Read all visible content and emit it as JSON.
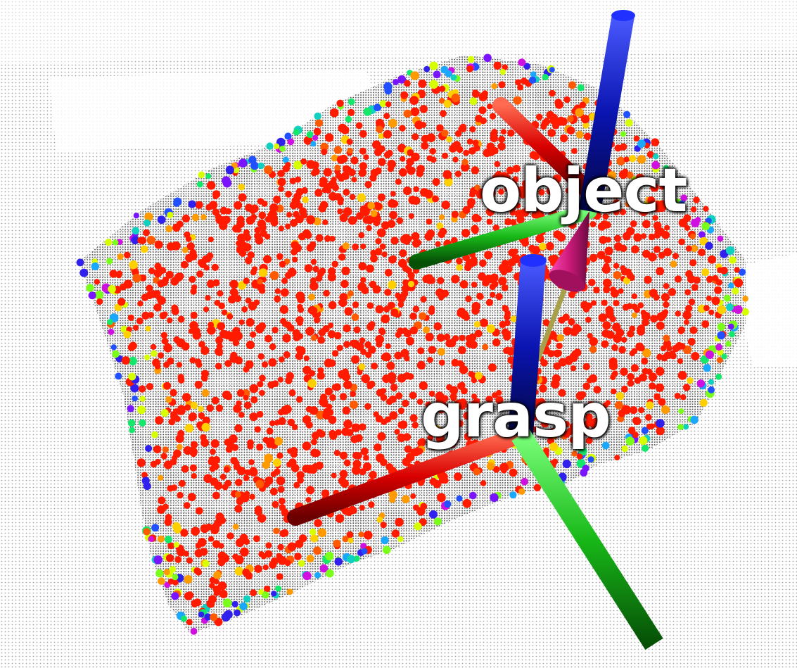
{
  "scene": {
    "background_color": "#ffffff",
    "labels": {
      "object": "object",
      "grasp": "grasp"
    },
    "axis_colors": {
      "x": "#e00000",
      "y": "#00bb00",
      "z": "#0010aa"
    },
    "approach_arrow_colors": {
      "head": "#cc1a7a",
      "shaft": "#a8a04a"
    },
    "point_palette": [
      "#ff1a00",
      "#ff5a00",
      "#ff9a00",
      "#ffd000",
      "#d8ff00",
      "#7aff1a",
      "#14e86a",
      "#10d0c0",
      "#1aa8ff",
      "#2050ff",
      "#3020ee",
      "#7a14ff",
      "#d010e0"
    ]
  }
}
